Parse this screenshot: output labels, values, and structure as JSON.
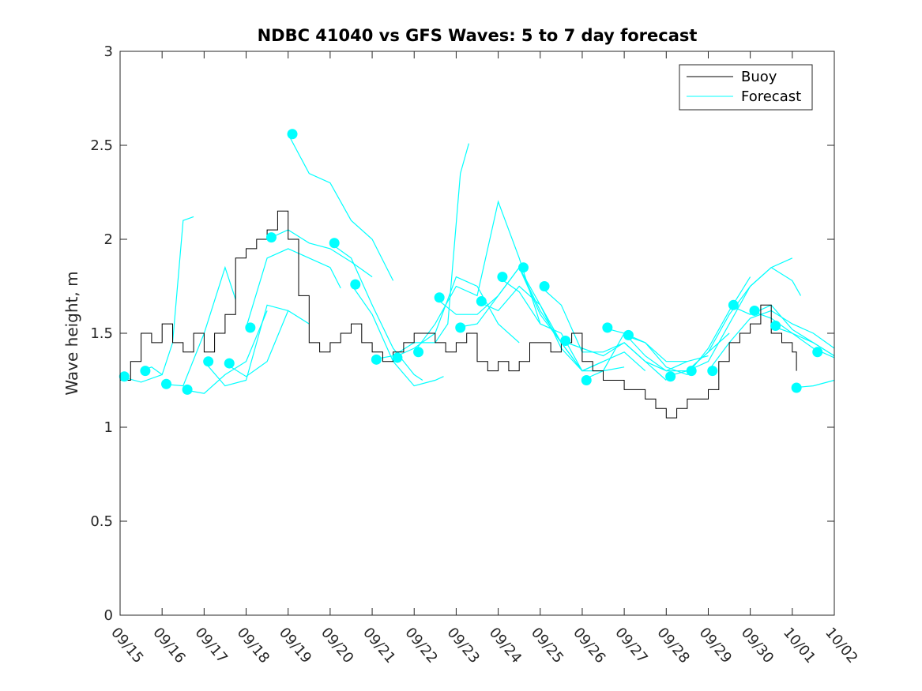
{
  "chart_data": {
    "type": "line",
    "title": "NDBC 41040 vs GFS Waves: 5 to 7 day forecast",
    "xlabel": "",
    "ylabel": "Wave height, m",
    "xlim": [
      0,
      17
    ],
    "ylim": [
      0,
      3
    ],
    "yticks": [
      0,
      0.5,
      1,
      1.5,
      2,
      2.5,
      3
    ],
    "ytick_labels": [
      "0",
      "0.5",
      "1",
      "1.5",
      "2",
      "2.5",
      "3"
    ],
    "xticks": [
      0,
      1,
      2,
      3,
      4,
      5,
      6,
      7,
      8,
      9,
      10,
      11,
      12,
      13,
      14,
      15,
      16,
      17
    ],
    "xtick_labels": [
      "09/15",
      "09/16",
      "09/17",
      "09/18",
      "09/19",
      "09/20",
      "09/21",
      "09/22",
      "09/23",
      "09/24",
      "09/25",
      "09/26",
      "09/27",
      "09/28",
      "09/29",
      "09/30",
      "10/01",
      "10/02"
    ],
    "legend": {
      "position": "top-right",
      "entries": [
        {
          "name": "Buoy",
          "color": "#000000"
        },
        {
          "name": "Forecast",
          "color": "#00ffff"
        }
      ]
    },
    "colors": {
      "buoy": "#000000",
      "forecast": "#00ffff",
      "axis": "#262626"
    },
    "buoy": {
      "x": [
        0,
        0.25,
        0.5,
        0.75,
        1,
        1.25,
        1.5,
        1.75,
        2,
        2.25,
        2.5,
        2.75,
        3,
        3.25,
        3.5,
        3.75,
        4,
        4.25,
        4.5,
        4.75,
        5,
        5.25,
        5.5,
        5.75,
        6,
        6.25,
        6.5,
        6.75,
        7,
        7.25,
        7.5,
        7.75,
        8,
        8.25,
        8.5,
        8.75,
        9,
        9.25,
        9.5,
        9.75,
        10,
        10.25,
        10.5,
        10.75,
        11,
        11.25,
        11.5,
        11.75,
        12,
        12.25,
        12.5,
        12.75,
        13,
        13.25,
        13.5,
        13.75,
        14,
        14.25,
        14.5,
        14.75,
        15,
        15.25,
        15.5,
        15.75,
        16,
        16.1
      ],
      "y": [
        1.25,
        1.35,
        1.5,
        1.45,
        1.55,
        1.45,
        1.4,
        1.5,
        1.4,
        1.5,
        1.6,
        1.9,
        1.95,
        2.0,
        2.05,
        2.15,
        2.0,
        1.7,
        1.45,
        1.4,
        1.45,
        1.5,
        1.55,
        1.45,
        1.4,
        1.35,
        1.4,
        1.45,
        1.5,
        1.5,
        1.45,
        1.4,
        1.45,
        1.5,
        1.35,
        1.3,
        1.35,
        1.3,
        1.35,
        1.45,
        1.45,
        1.4,
        1.45,
        1.5,
        1.35,
        1.3,
        1.25,
        1.25,
        1.2,
        1.2,
        1.15,
        1.1,
        1.05,
        1.1,
        1.15,
        1.15,
        1.2,
        1.35,
        1.45,
        1.5,
        1.55,
        1.65,
        1.5,
        1.45,
        1.4,
        1.3
      ]
    },
    "forecasts": [
      {
        "x": [
          0,
          0.5,
          1
        ],
        "y": [
          1.27,
          1.24,
          1.28
        ]
      },
      {
        "x": [
          0.5,
          0.75,
          1,
          1.25,
          1.5,
          1.75
        ],
        "y": [
          1.3,
          1.32,
          1.28,
          1.45,
          2.1,
          2.12
        ]
      },
      {
        "x": [
          1,
          1.5,
          2,
          2.5,
          2.75
        ],
        "y": [
          1.23,
          1.22,
          1.5,
          1.85,
          1.68
        ]
      },
      {
        "x": [
          1.5,
          2,
          2.5,
          3,
          3.5
        ],
        "y": [
          1.2,
          1.18,
          1.28,
          1.35,
          1.62
        ]
      },
      {
        "x": [
          2,
          2.5,
          3,
          3.5,
          4
        ],
        "y": [
          1.35,
          1.22,
          1.25,
          1.65,
          1.62
        ]
      },
      {
        "x": [
          2.5,
          3,
          3.5,
          4,
          4.5
        ],
        "y": [
          1.34,
          1.27,
          1.35,
          1.62,
          1.55
        ]
      },
      {
        "x": [
          3,
          3.5,
          4,
          4.5,
          5,
          5.25
        ],
        "y": [
          1.53,
          1.9,
          1.95,
          1.9,
          1.85,
          1.74
        ]
      },
      {
        "x": [
          3.5,
          4,
          4.5,
          5,
          5.5,
          6
        ],
        "y": [
          2.0,
          2.05,
          1.98,
          1.95,
          1.88,
          1.8
        ]
      },
      {
        "x": [
          4,
          4.5,
          5,
          5.5,
          6,
          6.5
        ],
        "y": [
          2.56,
          2.35,
          2.3,
          2.1,
          2.0,
          1.78
        ]
      },
      {
        "x": [
          5,
          5.5,
          6,
          6.5,
          7,
          7.2
        ],
        "y": [
          1.98,
          1.9,
          1.65,
          1.42,
          1.28,
          1.25
        ]
      },
      {
        "x": [
          5.5,
          6,
          6.5,
          7,
          7.5,
          7.7
        ],
        "y": [
          1.76,
          1.6,
          1.35,
          1.22,
          1.25,
          1.27
        ]
      },
      {
        "x": [
          6,
          6.5,
          7,
          7.5,
          7.8,
          8.1,
          8.3
        ],
        "y": [
          1.36,
          1.38,
          1.45,
          1.45,
          1.55,
          2.35,
          2.51
        ]
      },
      {
        "x": [
          6.5,
          7,
          7.5,
          8,
          8.5,
          9,
          9.5
        ],
        "y": [
          1.37,
          1.42,
          1.5,
          1.8,
          1.75,
          1.55,
          1.45
        ]
      },
      {
        "x": [
          7,
          7.5,
          8,
          8.5,
          9,
          9.5,
          10
        ],
        "y": [
          1.4,
          1.55,
          1.75,
          1.7,
          2.2,
          1.9,
          1.55
        ]
      },
      {
        "x": [
          7.5,
          8,
          8.5,
          9,
          9.5,
          10,
          10.5
        ],
        "y": [
          1.69,
          1.6,
          1.6,
          1.7,
          1.85,
          1.6,
          1.45
        ]
      },
      {
        "x": [
          8,
          8.5,
          9,
          9.5,
          10,
          10.5,
          11
        ],
        "y": [
          1.53,
          1.55,
          1.7,
          1.85,
          1.65,
          1.42,
          1.3
        ]
      },
      {
        "x": [
          8.5,
          9,
          9.5,
          10,
          10.5,
          11,
          11.5
        ],
        "y": [
          1.67,
          1.62,
          1.75,
          1.65,
          1.45,
          1.3,
          1.35
        ]
      },
      {
        "x": [
          9,
          9.5,
          10,
          10.5,
          11,
          11.5,
          12
        ],
        "y": [
          1.8,
          1.72,
          1.55,
          1.5,
          1.3,
          1.3,
          1.32
        ]
      },
      {
        "x": [
          9.5,
          10,
          10.5,
          11,
          11.5,
          12,
          12.5
        ],
        "y": [
          1.85,
          1.62,
          1.45,
          1.3,
          1.35,
          1.4,
          1.3
        ]
      },
      {
        "x": [
          10,
          10.5,
          11,
          11.5,
          12,
          12.5,
          13
        ],
        "y": [
          1.75,
          1.65,
          1.4,
          1.4,
          1.45,
          1.35,
          1.25
        ]
      },
      {
        "x": [
          10.5,
          11,
          11.5,
          12,
          12.5,
          13,
          13.5
        ],
        "y": [
          1.46,
          1.42,
          1.38,
          1.45,
          1.35,
          1.3,
          1.35
        ]
      },
      {
        "x": [
          11,
          11.5,
          12,
          12.5,
          13,
          13.5,
          14
        ],
        "y": [
          1.25,
          1.3,
          1.5,
          1.45,
          1.35,
          1.35,
          1.38
        ]
      },
      {
        "x": [
          11.5,
          12,
          12.5,
          13,
          13.5,
          14,
          14.5
        ],
        "y": [
          1.53,
          1.5,
          1.38,
          1.3,
          1.3,
          1.4,
          1.5
        ]
      },
      {
        "x": [
          12,
          12.5,
          13,
          13.5,
          14,
          14.5,
          15
        ],
        "y": [
          1.49,
          1.45,
          1.32,
          1.28,
          1.42,
          1.62,
          1.8
        ]
      },
      {
        "x": [
          13,
          13.5,
          14,
          14.5,
          15,
          15.5,
          16
        ],
        "y": [
          1.27,
          1.3,
          1.4,
          1.6,
          1.75,
          1.85,
          1.9
        ]
      },
      {
        "x": [
          13.5,
          14,
          14.5,
          15,
          15.5,
          16,
          16.2
        ],
        "y": [
          1.3,
          1.35,
          1.55,
          1.75,
          1.85,
          1.78,
          1.7
        ]
      },
      {
        "x": [
          14,
          14.5,
          15,
          15.5,
          16,
          16.5,
          17
        ],
        "y": [
          1.3,
          1.45,
          1.58,
          1.62,
          1.55,
          1.5,
          1.42
        ]
      },
      {
        "x": [
          14.5,
          15,
          15.5,
          16,
          16.5,
          17
        ],
        "y": [
          1.65,
          1.6,
          1.65,
          1.52,
          1.45,
          1.38
        ]
      },
      {
        "x": [
          15,
          15.5,
          16,
          16.5,
          17
        ],
        "y": [
          1.62,
          1.58,
          1.5,
          1.42,
          1.37
        ]
      },
      {
        "x": [
          15.5,
          16,
          16.5,
          17
        ],
        "y": [
          1.54,
          1.5,
          1.45,
          1.38
        ]
      },
      {
        "x": [
          16,
          16.5,
          17
        ],
        "y": [
          1.21,
          1.22,
          1.25
        ]
      }
    ],
    "forecast_markers": {
      "x": [
        0.1,
        0.6,
        1.1,
        1.6,
        2.1,
        2.6,
        3.1,
        3.6,
        4.1,
        5.1,
        5.6,
        6.1,
        6.6,
        7.1,
        7.6,
        8.1,
        8.6,
        9.1,
        9.6,
        10.1,
        10.6,
        11.1,
        11.6,
        12.1,
        13.1,
        13.6,
        14.1,
        14.6,
        15.1,
        15.6,
        16.1,
        16.6
      ],
      "y": [
        1.27,
        1.3,
        1.23,
        1.2,
        1.35,
        1.34,
        1.53,
        2.01,
        2.56,
        1.98,
        1.76,
        1.36,
        1.37,
        1.4,
        1.69,
        1.53,
        1.67,
        1.8,
        1.85,
        1.75,
        1.46,
        1.25,
        1.53,
        1.49,
        1.27,
        1.3,
        1.3,
        1.65,
        1.62,
        1.54,
        1.21,
        1.4
      ]
    }
  }
}
